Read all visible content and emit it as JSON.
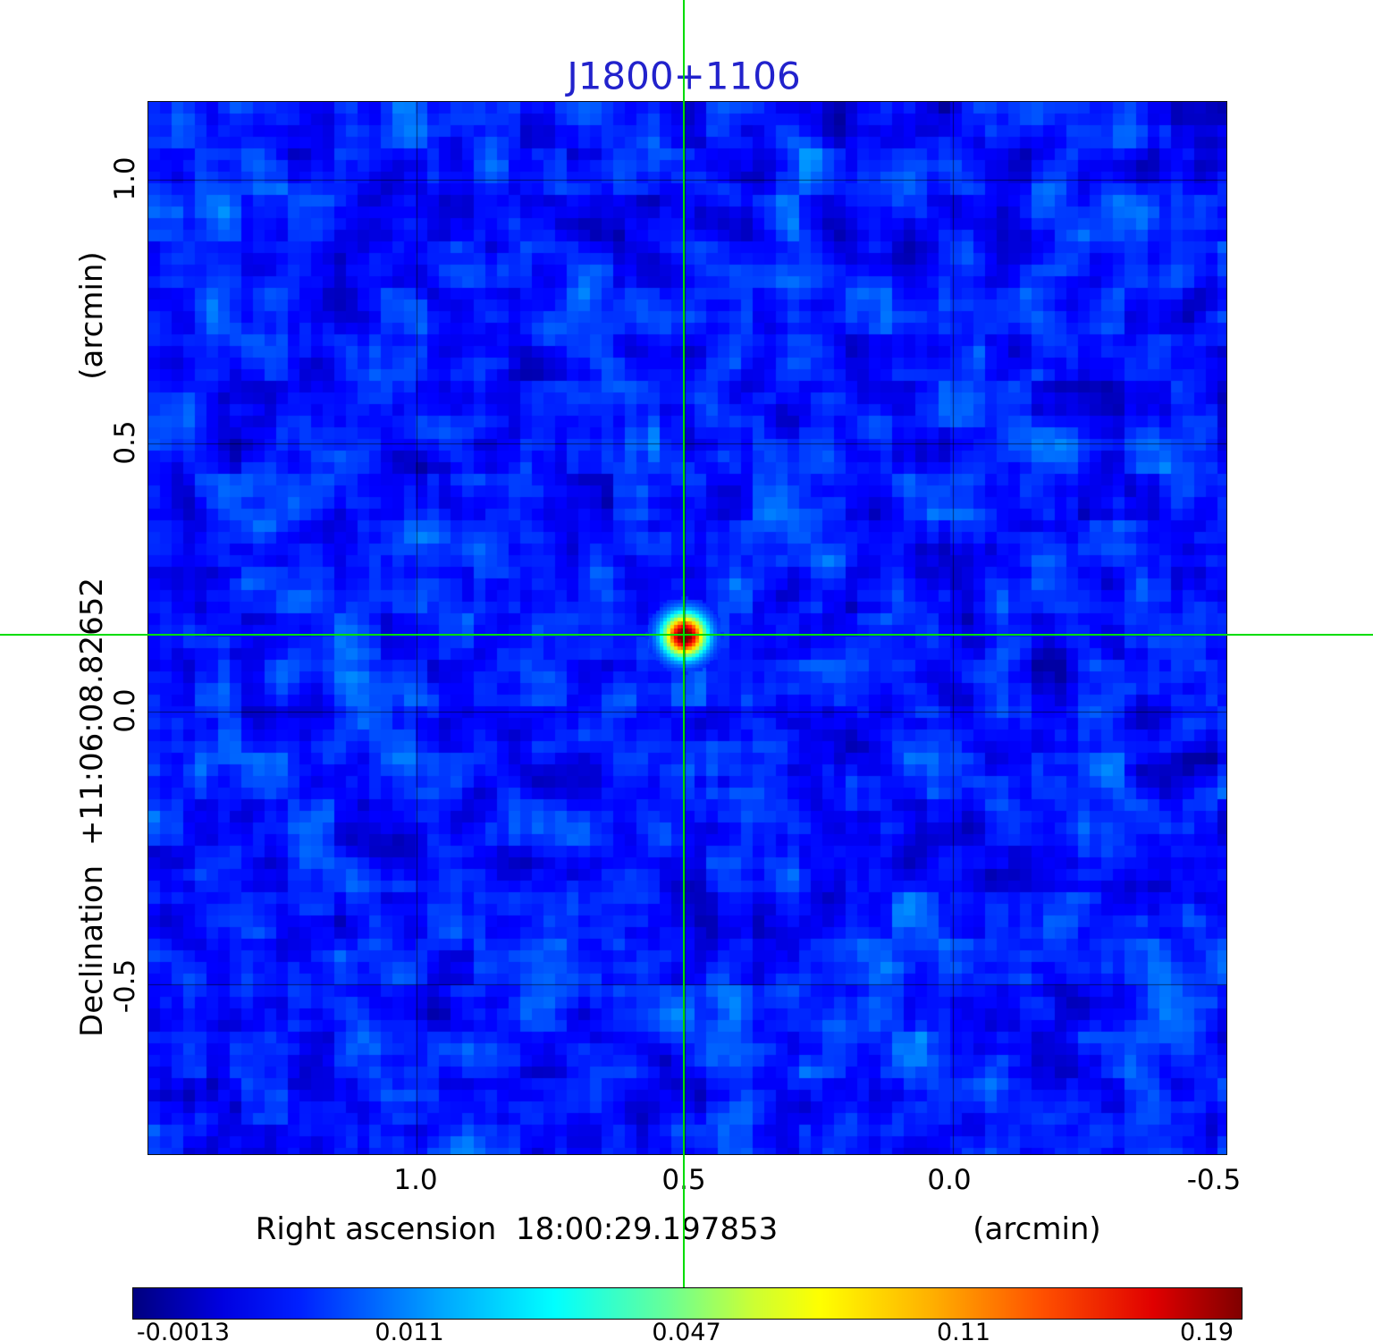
{
  "title": "J1800+1106",
  "colors": {
    "title": "#2222cc",
    "crosshair": "#00dd00",
    "grid": "#000000"
  },
  "axes": {
    "x_label_ra": "Right ascension  18:00:29.197853",
    "x_label_unit": "(arcmin)",
    "y_label_dec": "Declination  +11:06:08.82652",
    "y_label_unit": "(arcmin)",
    "x_ticks": [
      "1.0",
      "0.5",
      "0.0",
      "-0.5"
    ],
    "y_ticks": [
      "1.0",
      "0.5",
      "0.0",
      "-0.5"
    ]
  },
  "colorbar": {
    "ticks": [
      "-0.0013",
      "0.011",
      "0.047",
      "0.11",
      "0.19"
    ]
  },
  "chart_data": {
    "type": "heatmap",
    "title": "J1800+1106",
    "xlabel": "Right ascension 18:00:29.197853 (arcmin)",
    "ylabel": "Declination +11:06:08.82652 (arcmin)",
    "x_axis": {
      "unit": "arcmin",
      "ticks": [
        1.0,
        0.5,
        0.0,
        -0.5
      ],
      "range": [
        1.5,
        -0.51
      ]
    },
    "y_axis": {
      "unit": "arcmin",
      "ticks": [
        1.0,
        0.5,
        0.0,
        -0.5
      ],
      "range": [
        -0.82,
        1.15
      ]
    },
    "colormap": "jet",
    "value_range": [
      -0.0013,
      0.19
    ],
    "colorbar_ticks": [
      -0.0013,
      0.011,
      0.047,
      0.11,
      0.19
    ],
    "background_level": 0.002,
    "grid": true,
    "source": {
      "ra": "18:00:29.197853",
      "dec": "+11:06:08.82652",
      "x_arcmin": 0.5,
      "y_arcmin": 0.15,
      "peak_value": 0.19
    },
    "crosshair": {
      "x_arcmin": 0.5,
      "y_arcmin": 0.15
    }
  }
}
